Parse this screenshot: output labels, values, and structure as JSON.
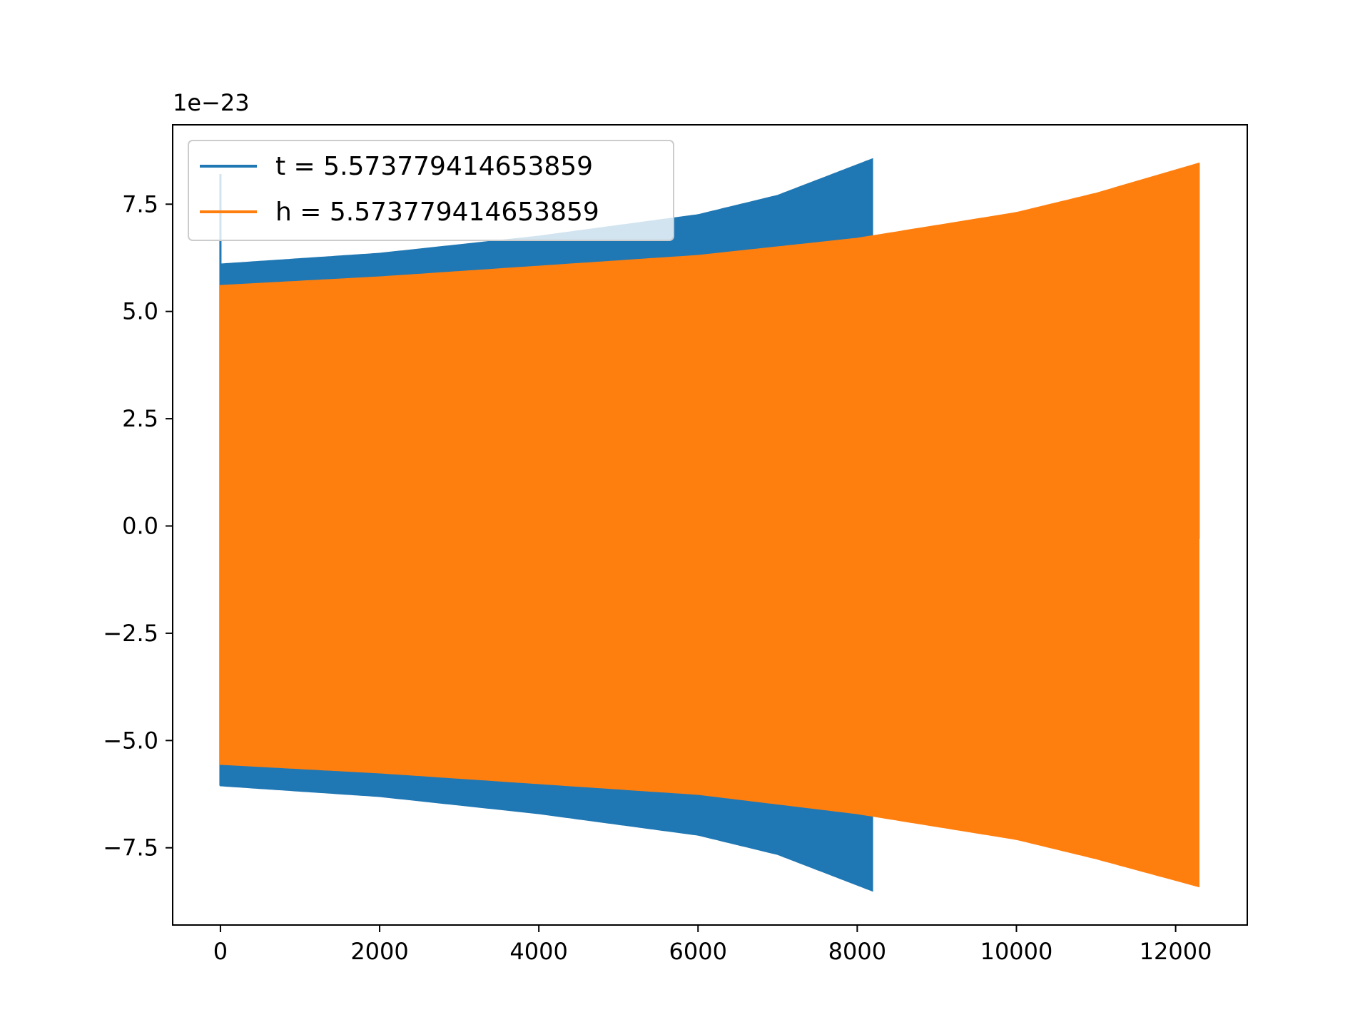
{
  "chart_data": {
    "type": "line",
    "title": "",
    "xlabel": "",
    "ylabel": "",
    "y_offset_label": "1e−23",
    "xlim": [
      -600,
      12900
    ],
    "ylim": [
      -9.3,
      9.35
    ],
    "x_ticks": [
      0,
      2000,
      4000,
      6000,
      8000,
      10000,
      12000
    ],
    "x_tick_labels": [
      "0",
      "2000",
      "4000",
      "6000",
      "8000",
      "10000",
      "12000"
    ],
    "y_ticks": [
      7.5,
      5.0,
      2.5,
      0.0,
      -2.5,
      -5.0,
      -7.5
    ],
    "y_tick_labels": [
      "7.5",
      "5.0",
      "2.5",
      "0.0",
      "−2.5",
      "−5.0",
      "−7.5"
    ],
    "grid": false,
    "legend": {
      "placement": "upper-left"
    },
    "series": [
      {
        "name": "t = 5.573779414653859",
        "color": "#1f77b4",
        "x_end": 8190,
        "initial_spike": 8.2,
        "envelope_upper": [
          [
            0,
            6.1
          ],
          [
            2000,
            6.35
          ],
          [
            4000,
            6.75
          ],
          [
            6000,
            7.25
          ],
          [
            7000,
            7.7
          ],
          [
            8190,
            8.55
          ]
        ],
        "envelope_lower": [
          [
            0,
            -6.05
          ],
          [
            2000,
            -6.3
          ],
          [
            4000,
            -6.7
          ],
          [
            6000,
            -7.2
          ],
          [
            7000,
            -7.65
          ],
          [
            8190,
            -8.5
          ]
        ]
      },
      {
        "name": "h = 5.573779414653859",
        "color": "#ff7f0e",
        "x_end": 12290,
        "envelope_upper": [
          [
            0,
            5.6
          ],
          [
            2000,
            5.8
          ],
          [
            4000,
            6.05
          ],
          [
            6000,
            6.3
          ],
          [
            8000,
            6.7
          ],
          [
            10000,
            7.3
          ],
          [
            11000,
            7.75
          ],
          [
            12290,
            8.45
          ]
        ],
        "envelope_lower": [
          [
            0,
            -5.55
          ],
          [
            2000,
            -5.75
          ],
          [
            4000,
            -6.0
          ],
          [
            6000,
            -6.25
          ],
          [
            8000,
            -6.7
          ],
          [
            10000,
            -7.3
          ],
          [
            11000,
            -7.75
          ],
          [
            12290,
            -8.4
          ]
        ]
      }
    ]
  }
}
